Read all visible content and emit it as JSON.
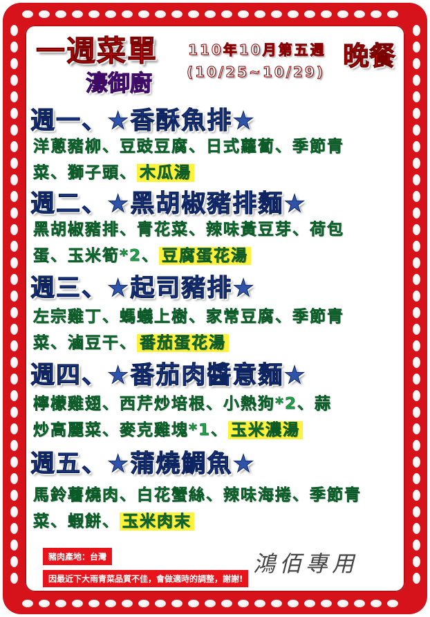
{
  "header": {
    "title": "一週菜單",
    "kitchen": "濠御廚",
    "week": "110年10月第五週",
    "date_range": "(10/25~10/29)",
    "meal": "晚餐"
  },
  "days": [
    {
      "heading": "週一、★香酥魚排★",
      "line1": "洋蔥豬柳、豆豉豆腐、日式蘿蔔、季節青",
      "line2": "菜、獅子頭、",
      "soup": "木瓜湯"
    },
    {
      "heading": "週二、★黑胡椒豬排麵★",
      "line1": "黑胡椒豬排、青花菜、辣味黃豆芽、荷包",
      "line2": "蛋、玉米筍*2、",
      "soup": "豆腐蛋花湯"
    },
    {
      "heading": "週三、★起司豬排★",
      "line1": "左宗雞丁、螞蟻上樹、家常豆腐、季節青",
      "line2": "菜、滷豆干、",
      "soup": "番茄蛋花湯"
    },
    {
      "heading": "週四、★番茄肉醬意麵★",
      "line1": "檸檬雞翅、西芹炒培根、小熱狗*2、蒜",
      "line2": "炒高麗菜、麥克雞塊*1、",
      "soup": "玉米濃湯"
    },
    {
      "heading": "週五、★蒲燒鯛魚★",
      "line1": "馬鈴薯燒肉、白花蟹絲、辣味海捲、季節青",
      "line2": "菜、蝦餅、",
      "soup": "玉米肉末"
    }
  ],
  "notes": {
    "origin": "豬肉產地：台灣",
    "notice": "因最近下大雨青菜品質不佳，會做適時的調整，謝謝!"
  },
  "signature": "鴻佰專用",
  "colors": {
    "frame": "#d6131b",
    "title": "#e8121b",
    "kitchen": "#8b2fc9",
    "day_heading": "#2f53a8",
    "dish_text": "#1ea24a",
    "soup_highlight": "#fff23a"
  }
}
